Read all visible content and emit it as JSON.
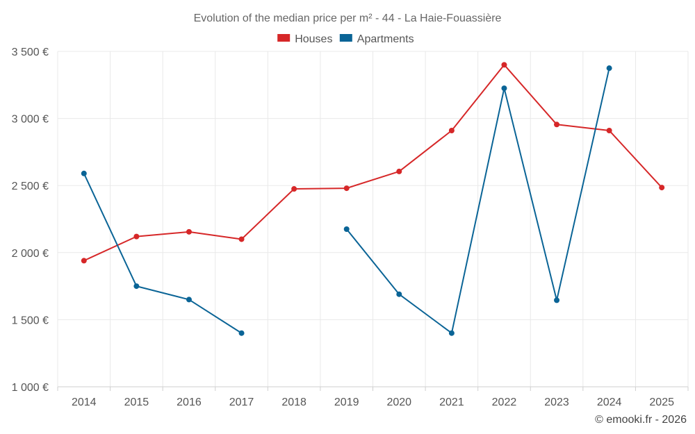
{
  "chart_data": {
    "type": "line",
    "title": "Evolution of the median price per m² - 44 - La Haie-Fouassière",
    "categories": [
      "2014",
      "2015",
      "2016",
      "2017",
      "2018",
      "2019",
      "2020",
      "2021",
      "2022",
      "2023",
      "2024",
      "2025"
    ],
    "series": [
      {
        "name": "Houses",
        "color": "#d62728",
        "values": [
          1940,
          2120,
          2155,
          2100,
          2475,
          2480,
          2605,
          2910,
          3400,
          2955,
          2910,
          2485
        ]
      },
      {
        "name": "Apartments",
        "color": "#0a6496",
        "values": [
          2590,
          1750,
          1650,
          1400,
          null,
          2175,
          1690,
          1400,
          3225,
          1645,
          3375,
          null
        ]
      }
    ],
    "ylim": [
      1000,
      3500
    ],
    "yticks": [
      1000,
      1500,
      2000,
      2500,
      3000,
      3500
    ],
    "ytick_labels": [
      "1 000 €",
      "1 500 €",
      "2 000 €",
      "2 500 €",
      "3 000 €",
      "3 500 €"
    ],
    "grid": true,
    "legend_position": "top-center"
  },
  "credit": "© emooki.fr - 2026"
}
